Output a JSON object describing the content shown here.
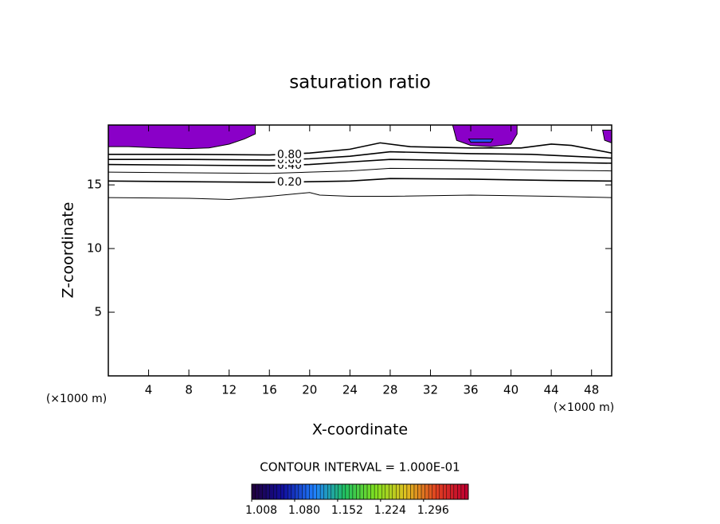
{
  "chart_data": {
    "type": "contour",
    "title": "saturation ratio",
    "x_label": "X-coordinate",
    "y_label": "Z-coordinate",
    "x_unit": "(×1000 m)",
    "y_unit": "(×1000 m)",
    "xlim": [
      0,
      50
    ],
    "ylim": [
      0,
      19.7
    ],
    "xticks": [
      4,
      8,
      12,
      16,
      20,
      24,
      28,
      32,
      36,
      40,
      44,
      48
    ],
    "yticks": [
      5,
      10,
      15
    ],
    "contours": [
      {
        "x": [
          0,
          8,
          12,
          16,
          20,
          21,
          24,
          28,
          36,
          44,
          50
        ],
        "y": [
          14.0,
          13.95,
          13.85,
          14.1,
          14.4,
          14.2,
          14.1,
          14.1,
          14.2,
          14.1,
          14.0
        ]
      },
      {
        "label": "0.20",
        "x": [
          0,
          8,
          16,
          20,
          24,
          28,
          36,
          44,
          50
        ],
        "y": [
          15.3,
          15.25,
          15.2,
          15.25,
          15.3,
          15.5,
          15.45,
          15.35,
          15.3
        ]
      },
      {
        "x": [
          0,
          8,
          16,
          20,
          24,
          28,
          36,
          44,
          50
        ],
        "y": [
          16.0,
          15.95,
          15.9,
          16.0,
          16.1,
          16.3,
          16.25,
          16.15,
          16.1
        ]
      },
      {
        "label": "0.40",
        "x": [
          0,
          8,
          16,
          20,
          24,
          28,
          36,
          42,
          50
        ],
        "y": [
          16.6,
          16.55,
          16.5,
          16.6,
          16.8,
          17.0,
          16.9,
          16.8,
          16.7
        ]
      },
      {
        "label": "0.60",
        "x": [
          0,
          8,
          16,
          20,
          24,
          28,
          36,
          42,
          50
        ],
        "y": [
          17.0,
          17.0,
          16.95,
          17.05,
          17.25,
          17.6,
          17.45,
          17.4,
          17.1
        ]
      },
      {
        "label": "0.80",
        "x": [
          0,
          8,
          16,
          20,
          24,
          27,
          30,
          36,
          41,
          44,
          46,
          50
        ],
        "y": [
          17.4,
          17.4,
          17.35,
          17.5,
          17.8,
          18.3,
          18.0,
          17.9,
          17.9,
          18.2,
          18.1,
          17.5
        ]
      }
    ],
    "filled_regions": [
      {
        "color": "#8a00c8",
        "x": [
          0,
          14.6,
          14.6,
          13.5,
          12,
          10,
          8,
          5,
          2,
          0
        ],
        "y": [
          19.7,
          19.7,
          19.0,
          18.6,
          18.2,
          17.9,
          17.85,
          17.9,
          18.0,
          18.0
        ]
      },
      {
        "color": "#8a00c8",
        "x": [
          34.2,
          40.6,
          40.6,
          40.0,
          38,
          36,
          34.6
        ],
        "y": [
          19.7,
          19.7,
          19.0,
          18.2,
          18.0,
          18.1,
          18.5
        ]
      },
      {
        "color": "#8a00c8",
        "x": [
          49.1,
          50,
          50,
          49.3
        ],
        "y": [
          19.3,
          19.3,
          18.3,
          18.5
        ]
      },
      {
        "color": "#2a50ff",
        "x": [
          35.8,
          38.2,
          38.0,
          36.0
        ],
        "y": [
          18.6,
          18.6,
          18.35,
          18.35
        ]
      }
    ],
    "colorbar": {
      "title": "CONTOUR INTERVAL = 1.000E-01",
      "range": [
        1.008,
        1.371
      ],
      "ticks": [
        {
          "value": 1.008,
          "label": "1.008"
        },
        {
          "value": 1.08,
          "label": "1.080"
        },
        1.152,
        1.224,
        1.296
      ],
      "colors": [
        "#200040",
        "#1010a0",
        "#2080ff",
        "#20c060",
        "#80e020",
        "#e0c020",
        "#e04020",
        "#c00030"
      ]
    }
  }
}
